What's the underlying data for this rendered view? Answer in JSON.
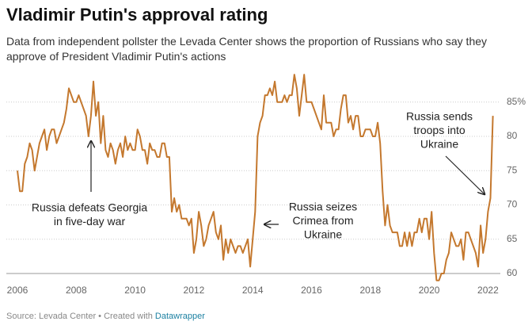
{
  "chart_data": {
    "type": "line",
    "title": "Vladimir Putin's approval rating",
    "subtitle": "Data from independent pollster the Levada Center shows the proportion of Russians who say they approve of President Vladimir Putin's actions",
    "footer": "Source: Levada Center • Created with",
    "footer_link": "Datawrapper",
    "categories": [
      "2006",
      null,
      null,
      null,
      null,
      null,
      null,
      null,
      null,
      null,
      null,
      null,
      null,
      null,
      null,
      null,
      null,
      null,
      null,
      null,
      null,
      null,
      null,
      null,
      "2008",
      null,
      null,
      null,
      null,
      null,
      null,
      null,
      null,
      null,
      null,
      null,
      null,
      null,
      null,
      null,
      null,
      null,
      null,
      null,
      null,
      null,
      null,
      null,
      "2010",
      null,
      null,
      null,
      null,
      null,
      null,
      null,
      null,
      null,
      null,
      null,
      null,
      null,
      null,
      null,
      null,
      null,
      null,
      null,
      null,
      null,
      null,
      null,
      "2012",
      null,
      null,
      null,
      null,
      null,
      null,
      null,
      null,
      null,
      null,
      null,
      null,
      null,
      null,
      null,
      null,
      null,
      null,
      null,
      null,
      null,
      null,
      null,
      "2014",
      null,
      null,
      null,
      null,
      null,
      null,
      null,
      null,
      null,
      null,
      null,
      null,
      null,
      null,
      null,
      null,
      null,
      null,
      null,
      null,
      null,
      null,
      null,
      "2016",
      null,
      null,
      null,
      null,
      null,
      null,
      null,
      null,
      null,
      null,
      null,
      null,
      null,
      null,
      null,
      null,
      null,
      null,
      null,
      null,
      null,
      null,
      null,
      "2018",
      null,
      null,
      null,
      null,
      null,
      null,
      null,
      null,
      null,
      null,
      null,
      null,
      null,
      null,
      null,
      null,
      null,
      null,
      null,
      null,
      null,
      null,
      null,
      "2020",
      null,
      null,
      null,
      null,
      null,
      null,
      null,
      null,
      null,
      null,
      null,
      null,
      null,
      null,
      null,
      null,
      null,
      null,
      null,
      null,
      null,
      null,
      null,
      "2022",
      null,
      null
    ],
    "series": [
      {
        "name": "Approval",
        "color": "#c4782e",
        "values": [
          75,
          72,
          72,
          76,
          77,
          79,
          78,
          75,
          77,
          79,
          80,
          81,
          78,
          80,
          81,
          81,
          79,
          80,
          81,
          82,
          84,
          87,
          86,
          85,
          85,
          86,
          85,
          84,
          83,
          80,
          83,
          88,
          83,
          85,
          79,
          83,
          78,
          77,
          79,
          78,
          76,
          78,
          79,
          77,
          80,
          78,
          79,
          78,
          78,
          81,
          80,
          78,
          78,
          76,
          79,
          78,
          78,
          77,
          77,
          79,
          79,
          77,
          77,
          69,
          71,
          69,
          70,
          68,
          68,
          68,
          67,
          68,
          63,
          65,
          69,
          67,
          64,
          65,
          67,
          68,
          69,
          66,
          65,
          67,
          62,
          65,
          63,
          65,
          64,
          63,
          64,
          64,
          63,
          64,
          65,
          61,
          65,
          69,
          80,
          82,
          83,
          86,
          86,
          87,
          86,
          88,
          85,
          85,
          85,
          86,
          85,
          86,
          86,
          89,
          87,
          83,
          86,
          89,
          85,
          85,
          85,
          84,
          83,
          82,
          81,
          86,
          82,
          82,
          82,
          80,
          81,
          81,
          84,
          86,
          86,
          82,
          83,
          81,
          83,
          83,
          80,
          80,
          81,
          81,
          81,
          80,
          80,
          82,
          79,
          72,
          67,
          70,
          67,
          66,
          66,
          66,
          64,
          64,
          66,
          64,
          66,
          64,
          66,
          66,
          68,
          66,
          68,
          68,
          65,
          69,
          63,
          59,
          59,
          60,
          60,
          62,
          63,
          66,
          65,
          64,
          64,
          65,
          62,
          66,
          66,
          65,
          64,
          63,
          61,
          67,
          63,
          65,
          69,
          71,
          83
        ]
      }
    ],
    "ylim": [
      58,
      90
    ],
    "yticks": [
      60,
      65,
      70,
      75,
      80,
      {
        "value": 85,
        "label": "85%"
      }
    ],
    "grid": true,
    "annotations": [
      [
        "Russia defeats Georgia",
        "in five-day war"
      ],
      [
        "Russia seizes",
        "Crimea from",
        "Ukraine"
      ],
      [
        "Russia sends",
        "troops into",
        "Ukraine"
      ]
    ]
  }
}
